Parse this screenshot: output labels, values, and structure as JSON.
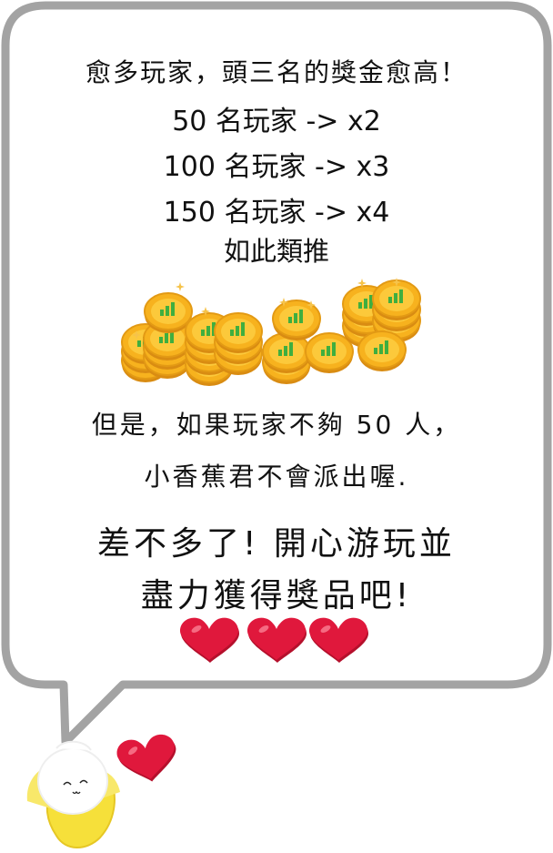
{
  "message": {
    "line1": "愈多玩家，頭三名的獎金愈高！",
    "line2": "50 名玩家 -> x2",
    "line3": "100 名玩家 -> x3",
    "line4": "150 名玩家 -> x4",
    "line5": "如此類推",
    "line6": "但是，如果玩家不夠 50 人，",
    "line7": "小香蕉君不會派出喔.",
    "line8": "差不多了! 開心游玩並",
    "line9": "盡力獲得獎品吧!"
  },
  "colors": {
    "bubble_border": "#a3a3a3",
    "heart": "#e0183c",
    "coin": "#f7b21e",
    "coin_bar": "#3fae3f",
    "banana": "#f6e03a"
  },
  "icons": {
    "coins": "coin-stack-icon",
    "hearts": "heart-icon",
    "mascot": "banana-mascot"
  }
}
